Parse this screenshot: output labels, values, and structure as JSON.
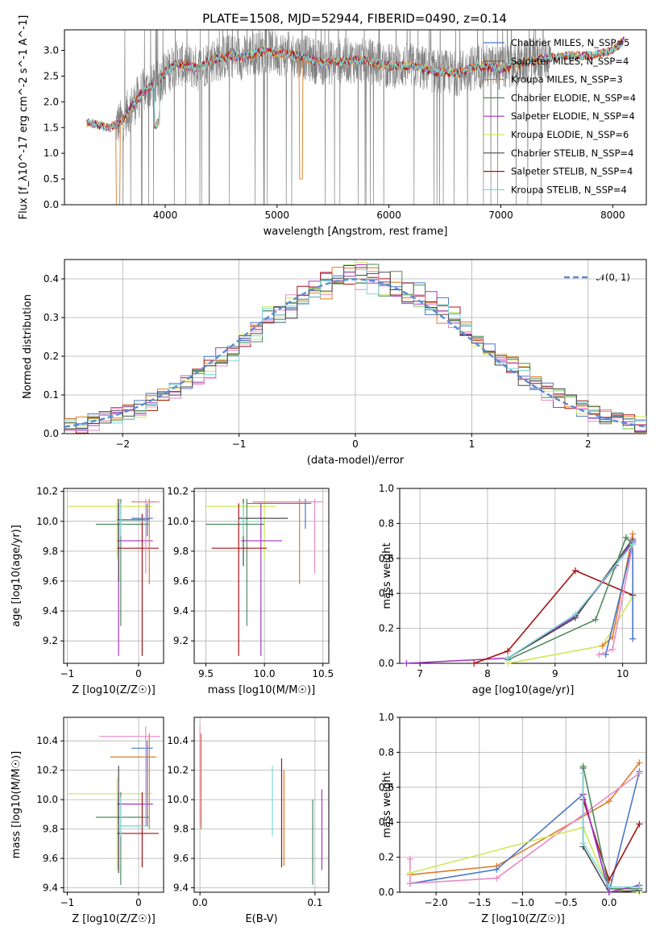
{
  "figure": {
    "title": "PLATE=1508, MJD=52944, FIBERID=0490, z=0.14"
  },
  "colors": {
    "chabrier_miles": "#4a78c8",
    "salpeter_miles": "#8b5a2b",
    "kroupa_miles": "#e07b27",
    "chabrier_elodie": "#4e8a5e",
    "salpeter_elodie": "#a335c4",
    "kroupa_elodie": "#cfe85a",
    "chabrier_stelib": "#4a4a4a",
    "salpeter_stelib": "#a41416",
    "kroupa_stelib": "#7ed8d8",
    "data_grey": "#808080",
    "gauss": "#5b8bd4",
    "pink": "#e88ac8"
  },
  "chart_data": [
    {
      "type": "line",
      "id": "spectrum",
      "xlabel": "wavelength [Angstrom, rest frame]",
      "ylabel": "Flux [f_λ10^-17 erg cm^-2 s^-1 A^-1]",
      "xlim": [
        3100,
        8300
      ],
      "ylim": [
        0,
        3.4
      ],
      "xticks": [
        4000,
        5000,
        6000,
        7000,
        8000
      ],
      "yticks": [
        0.0,
        0.5,
        1.0,
        1.5,
        2.0,
        2.5,
        3.0
      ],
      "tick_labels_x": [
        "4000",
        "5000",
        "6000",
        "7000",
        "8000"
      ],
      "tick_labels_y": [
        "0.0",
        "0.5",
        "1.0",
        "1.5",
        "2.0",
        "2.5",
        "3.0"
      ],
      "legend_position": "top-right",
      "legend": [
        "Chabrier MILES, N_SSP=5",
        "Salpeter MILES, N_SSP=4",
        "Kroupa MILES, N_SSP=3",
        "Chabrier ELODIE, N_SSP=4",
        "Salpeter ELODIE, N_SSP=4",
        "Kroupa ELODIE, N_SSP=6",
        "Chabrier STELIB, N_SSP=4",
        "Salpeter STELIB, N_SSP=4",
        "Kroupa STELIB, N_SSP=4"
      ],
      "model_continuum": {
        "x": [
          3300,
          3400,
          3500,
          3600,
          3700,
          3800,
          3900,
          4000,
          4100,
          4200,
          4300,
          4400,
          4500,
          4600,
          4700,
          4800,
          4900,
          5000,
          5200,
          5400,
          5600,
          5800,
          6000,
          6200,
          6400,
          6600,
          6800,
          7000,
          7200,
          7400,
          7600,
          7800,
          8000,
          8100
        ],
        "y": [
          1.6,
          1.55,
          1.5,
          1.6,
          1.9,
          2.2,
          2.3,
          2.55,
          2.75,
          2.7,
          2.65,
          2.8,
          2.85,
          2.9,
          2.85,
          2.95,
          3.0,
          2.95,
          2.9,
          2.75,
          2.8,
          2.8,
          2.7,
          2.7,
          2.6,
          2.55,
          2.7,
          2.65,
          2.75,
          2.85,
          2.9,
          2.9,
          3.0,
          3.2
        ]
      },
      "data_range": [
        3560,
        7450
      ]
    },
    {
      "type": "line",
      "id": "residuals",
      "xlabel": "(data-model)/error",
      "ylabel": "Normed distribution",
      "xlim": [
        -2.5,
        2.5
      ],
      "ylim": [
        0,
        0.45
      ],
      "xticks": [
        -2,
        -1,
        0,
        1,
        2
      ],
      "yticks": [
        0.0,
        0.1,
        0.2,
        0.3,
        0.4
      ],
      "tick_labels_x": [
        "−2",
        "−1",
        "0",
        "1",
        "2"
      ],
      "tick_labels_y": [
        "0.0",
        "0.1",
        "0.2",
        "0.3",
        "0.4"
      ],
      "legend": [
        "𝒩(0, 1)"
      ],
      "legend_position": "top-right",
      "gauss_mean": 0,
      "gauss_sigma": 1
    },
    {
      "type": "scatter",
      "id": "age_vs_Z",
      "xlabel": "Z [log10(Z/Z☉)]",
      "ylabel": "age  [log10(age/yr)]",
      "xlim": [
        -1.05,
        0.35
      ],
      "ylim": [
        9.05,
        10.22
      ],
      "xticks": [
        -1,
        0
      ],
      "yticks": [
        9.2,
        9.4,
        9.6,
        9.8,
        10.0,
        10.2
      ],
      "tick_labels_x": [
        "−1",
        "0"
      ],
      "tick_labels_y": [
        "9.2",
        "9.4",
        "9.6",
        "9.8",
        "10.0",
        "10.2"
      ],
      "points": [
        {
          "c": "kroupa_elodie",
          "x": -0.3,
          "xe": [
            -1.0,
            0.2
          ],
          "y": 10.1,
          "ye": [
            9.75,
            10.15
          ]
        },
        {
          "c": "chabrier_elodie",
          "x": -0.25,
          "xe": [
            -0.6,
            0.15
          ],
          "y": 9.98,
          "ye": [
            9.3,
            10.15
          ]
        },
        {
          "c": "salpeter_elodie",
          "x": -0.28,
          "xe": [
            -0.3,
            0.2
          ],
          "y": 9.87,
          "ye": [
            9.1,
            10.12
          ]
        },
        {
          "c": "salpeter_stelib",
          "x": 0.05,
          "xe": [
            -0.3,
            0.28
          ],
          "y": 9.82,
          "ye": [
            9.1,
            10.05
          ]
        },
        {
          "c": "chabrier_stelib",
          "x": -0.28,
          "xe": [
            -0.3,
            0.15
          ],
          "y": 10.01,
          "ye": [
            9.6,
            10.15
          ]
        },
        {
          "c": "kroupa_miles",
          "x": 0.15,
          "xe": [
            -0.1,
            0.25
          ],
          "y": 10.13,
          "ye": [
            9.58,
            10.15
          ]
        },
        {
          "c": "chabrier_miles",
          "x": 0.12,
          "xe": [
            -0.1,
            0.2
          ],
          "y": 10.02,
          "ye": [
            9.9,
            10.12
          ]
        },
        {
          "c": "pink",
          "x": 0.1,
          "xe": [
            -0.05,
            0.3
          ],
          "y": 10.13,
          "ye": [
            9.65,
            10.15
          ]
        },
        {
          "c": "kroupa_stelib",
          "x": -0.25,
          "xe": [
            -0.3,
            0.15
          ],
          "y": 10.0,
          "ye": [
            9.9,
            10.12
          ]
        }
      ]
    },
    {
      "type": "scatter",
      "id": "age_vs_mass",
      "xlabel": "mass [log10(M/M☉)]",
      "ylabel": "",
      "xlim": [
        9.4,
        10.55
      ],
      "ylim": [
        9.05,
        10.22
      ],
      "xticks": [
        9.5,
        10.0,
        10.5
      ],
      "yticks": [
        9.2,
        9.4,
        9.6,
        9.8,
        10.0,
        10.2
      ],
      "tick_labels_x": [
        "9.5",
        "10.0",
        "10.5"
      ],
      "tick_labels_y": [
        "9.2",
        "9.4",
        "9.6",
        "9.8",
        "10.0",
        "10.2"
      ],
      "points": [
        {
          "c": "kroupa_elodie",
          "x": 10.0,
          "xe": [
            9.5,
            10.1
          ],
          "y": 10.1,
          "ye": [
            9.75,
            10.15
          ]
        },
        {
          "c": "chabrier_elodie",
          "x": 9.85,
          "xe": [
            9.5,
            10.0
          ],
          "y": 9.98,
          "ye": [
            9.3,
            10.15
          ]
        },
        {
          "c": "salpeter_elodie",
          "x": 9.97,
          "xe": [
            9.8,
            10.15
          ],
          "y": 9.87,
          "ye": [
            9.1,
            10.12
          ]
        },
        {
          "c": "salpeter_stelib",
          "x": 9.78,
          "xe": [
            9.55,
            10.02
          ],
          "y": 9.82,
          "ye": [
            9.1,
            10.12
          ]
        },
        {
          "c": "chabrier_stelib",
          "x": 9.82,
          "xe": [
            9.78,
            10.2
          ],
          "y": 10.02,
          "ye": [
            9.7,
            10.15
          ]
        },
        {
          "c": "kroupa_miles",
          "x": 10.3,
          "xe": [
            9.9,
            10.4
          ],
          "y": 10.13,
          "ye": [
            9.58,
            10.15
          ]
        },
        {
          "c": "chabrier_miles",
          "x": 10.35,
          "xe": [
            9.85,
            10.4
          ],
          "y": 10.12,
          "ye": [
            9.95,
            10.15
          ]
        },
        {
          "c": "pink",
          "x": 10.43,
          "xe": [
            9.9,
            10.5
          ],
          "y": 10.13,
          "ye": [
            9.65,
            10.15
          ]
        },
        {
          "c": "kroupa_stelib",
          "x": 9.82,
          "xe": [
            9.75,
            10.0
          ],
          "y": 10.0,
          "ye": [
            9.9,
            10.12
          ]
        }
      ]
    },
    {
      "type": "line",
      "id": "weight_vs_age",
      "xlabel": "age  [log10(age/yr)]",
      "ylabel": "mass weight",
      "xlim": [
        6.7,
        10.35
      ],
      "ylim": [
        0,
        1.0
      ],
      "xticks": [
        7,
        8,
        9,
        10
      ],
      "yticks": [
        0.0,
        0.2,
        0.4,
        0.6,
        0.8,
        1.0
      ],
      "tick_labels_x": [
        "7",
        "8",
        "9",
        "10"
      ],
      "tick_labels_y": [
        "0.0",
        "0.2",
        "0.4",
        "0.6",
        "0.8",
        "1.0"
      ],
      "series": [
        {
          "c": "salpeter_elodie",
          "x": [
            6.8,
            8.3,
            9.3,
            9.9,
            10.15
          ],
          "y": [
            0.0,
            0.03,
            0.27,
            0.56,
            0.7
          ]
        },
        {
          "c": "salpeter_stelib",
          "x": [
            7.8,
            8.3,
            9.3,
            10.15
          ],
          "y": [
            0.0,
            0.07,
            0.53,
            0.39
          ]
        },
        {
          "c": "chabrier_stelib",
          "x": [
            8.3,
            9.3,
            10.15
          ],
          "y": [
            0.03,
            0.26,
            0.71
          ]
        },
        {
          "c": "chabrier_elodie",
          "x": [
            8.3,
            9.6,
            10.05,
            10.15
          ],
          "y": [
            0.02,
            0.25,
            0.72,
            0.68
          ]
        },
        {
          "c": "kroupa_elodie",
          "x": [
            8.3,
            9.7,
            10.15
          ],
          "y": [
            0.0,
            0.1,
            0.38
          ]
        },
        {
          "c": "kroupa_miles",
          "x": [
            9.7,
            9.85,
            10.15
          ],
          "y": [
            0.1,
            0.15,
            0.74
          ]
        },
        {
          "c": "chabrier_miles",
          "x": [
            9.75,
            10.15,
            10.15
          ],
          "y": [
            0.05,
            0.69,
            0.14
          ]
        },
        {
          "c": "pink",
          "x": [
            9.65,
            9.85,
            10.15
          ],
          "y": [
            0.05,
            0.08,
            0.68
          ]
        },
        {
          "c": "kroupa_stelib",
          "x": [
            8.3,
            9.3,
            10.15
          ],
          "y": [
            0.03,
            0.28,
            0.68
          ]
        }
      ]
    },
    {
      "type": "scatter",
      "id": "mass_vs_Z",
      "xlabel": "Z [log10(Z/Z☉)]",
      "ylabel": "mass [log10(M/M☉)]",
      "xlim": [
        -1.05,
        0.35
      ],
      "ylim": [
        9.37,
        10.56
      ],
      "xticks": [
        -1,
        0
      ],
      "yticks": [
        9.4,
        9.6,
        9.8,
        10.0,
        10.2,
        10.4
      ],
      "tick_labels_x": [
        "−1",
        "0"
      ],
      "tick_labels_y": [
        "9.4",
        "9.6",
        "9.8",
        "10.0",
        "10.2",
        "10.4"
      ],
      "points": [
        {
          "c": "kroupa_elodie",
          "x": -0.3,
          "xe": [
            -1.0,
            0.2
          ],
          "y": 10.04,
          "ye": [
            9.52,
            10.15
          ]
        },
        {
          "c": "chabrier_elodie",
          "x": -0.25,
          "xe": [
            -0.6,
            0.15
          ],
          "y": 9.88,
          "ye": [
            9.42,
            10.05
          ]
        },
        {
          "c": "salpeter_elodie",
          "x": -0.28,
          "xe": [
            -0.3,
            0.2
          ],
          "y": 9.97,
          "ye": [
            9.52,
            10.05
          ]
        },
        {
          "c": "salpeter_stelib",
          "x": 0.05,
          "xe": [
            -0.3,
            0.28
          ],
          "y": 9.77,
          "ye": [
            9.54,
            10.05
          ]
        },
        {
          "c": "chabrier_stelib",
          "x": -0.28,
          "xe": [
            -0.3,
            0.15
          ],
          "y": 9.82,
          "ye": [
            9.5,
            10.23
          ]
        },
        {
          "c": "kroupa_miles",
          "x": 0.15,
          "xe": [
            -0.4,
            0.25
          ],
          "y": 10.29,
          "ye": [
            9.8,
            10.45
          ]
        },
        {
          "c": "chabrier_miles",
          "x": 0.12,
          "xe": [
            -0.1,
            0.2
          ],
          "y": 10.35,
          "ye": [
            9.82,
            10.4
          ]
        },
        {
          "c": "pink",
          "x": 0.1,
          "xe": [
            -0.55,
            0.3
          ],
          "y": 10.43,
          "ye": [
            9.82,
            10.5
          ]
        },
        {
          "c": "kroupa_stelib",
          "x": -0.25,
          "xe": [
            -0.3,
            0.15
          ],
          "y": 9.82,
          "ye": [
            9.75,
            10.02
          ]
        }
      ]
    },
    {
      "type": "scatter",
      "id": "mass_vs_ebv",
      "xlabel": "E(B-V)",
      "ylabel": "",
      "xlim": [
        -0.005,
        0.112
      ],
      "ylim": [
        9.37,
        10.56
      ],
      "xticks": [
        0.0,
        0.1
      ],
      "yticks": [
        9.4,
        9.6,
        9.8,
        10.0,
        10.2,
        10.4
      ],
      "tick_labels_x": [
        "0.0",
        "0.1"
      ],
      "tick_labels_y": [
        "9.4",
        "9.6",
        "9.8",
        "10.0",
        "10.2",
        "10.4"
      ],
      "points": [
        {
          "c": "pink",
          "x": 0.0,
          "xe": [
            0.0,
            0.0
          ],
          "y": 10.43,
          "ye": [
            9.82,
            10.5
          ]
        },
        {
          "c": "kroupa_miles",
          "x": 0.001,
          "xe": [
            0.001,
            0.001
          ],
          "y": 10.29,
          "ye": [
            9.8,
            10.45
          ]
        },
        {
          "c": "kroupa_stelib",
          "x": 0.063,
          "xe": [
            0.063,
            0.063
          ],
          "y": 9.82,
          "ye": [
            9.75,
            10.23
          ]
        },
        {
          "c": "salpeter_stelib",
          "x": 0.071,
          "xe": [
            0.071,
            0.071
          ],
          "y": 9.77,
          "ye": [
            9.54,
            10.28
          ]
        },
        {
          "c": "kroupa_miles",
          "x": 0.073,
          "xe": [
            0.073,
            0.073
          ],
          "y": 10.29,
          "ye": [
            9.55,
            10.2
          ]
        },
        {
          "c": "chabrier_elodie",
          "x": 0.098,
          "xe": [
            0.098,
            0.098
          ],
          "y": 9.88,
          "ye": [
            9.42,
            10.0
          ]
        },
        {
          "c": "salpeter_elodie",
          "x": 0.106,
          "xe": [
            0.106,
            0.106
          ],
          "y": 9.97,
          "ye": [
            9.52,
            10.07
          ]
        }
      ]
    },
    {
      "type": "line",
      "id": "weight_vs_Z",
      "xlabel": "Z [log10(Z/Z☉)]",
      "ylabel": "mass weight",
      "xlim": [
        -2.42,
        0.43
      ],
      "ylim": [
        0,
        1.0
      ],
      "xticks": [
        -2.0,
        -1.5,
        -1.0,
        -0.5,
        0.0
      ],
      "yticks": [
        0.0,
        0.2,
        0.4,
        0.6,
        0.8,
        1.0
      ],
      "tick_labels_x": [
        "−2.0",
        "−1.5",
        "−1.0",
        "−0.5",
        "0.0"
      ],
      "tick_labels_y": [
        "0.0",
        "0.2",
        "0.4",
        "0.6",
        "0.8",
        "1.0"
      ],
      "series": [
        {
          "c": "kroupa_miles",
          "x": [
            -2.3,
            -1.3,
            0.0,
            0.35
          ],
          "y": [
            0.1,
            0.15,
            0.52,
            0.74
          ]
        },
        {
          "c": "chabrier_miles",
          "x": [
            -2.3,
            -1.3,
            -0.3,
            0.0,
            0.35
          ],
          "y": [
            0.05,
            0.13,
            0.56,
            0.0,
            0.69
          ]
        },
        {
          "c": "pink",
          "x": [
            -2.3,
            -2.3,
            -1.3,
            0.35
          ],
          "y": [
            0.19,
            0.05,
            0.08,
            0.68
          ]
        },
        {
          "c": "kroupa_elodie",
          "x": [
            -2.3,
            -0.3,
            0.0,
            0.35
          ],
          "y": [
            0.11,
            0.37,
            0.02,
            0.0
          ]
        },
        {
          "c": "salpeter_stelib",
          "x": [
            -0.3,
            0.0,
            0.35
          ],
          "y": [
            0.53,
            0.07,
            0.39
          ]
        },
        {
          "c": "chabrier_stelib",
          "x": [
            -0.3,
            -0.3,
            0.0,
            0.35
          ],
          "y": [
            0.71,
            0.26,
            0.0,
            0.01
          ]
        },
        {
          "c": "chabrier_elodie",
          "x": [
            -0.3,
            0.0,
            0.35
          ],
          "y": [
            0.72,
            0.02,
            0.02
          ]
        },
        {
          "c": "salpeter_elodie",
          "x": [
            -0.3,
            0.0,
            0.35
          ],
          "y": [
            0.56,
            0.0,
            0.04
          ]
        },
        {
          "c": "kroupa_stelib",
          "x": [
            -0.3,
            -0.3,
            0.0,
            0.35
          ],
          "y": [
            0.68,
            0.28,
            0.03,
            0.03
          ]
        }
      ]
    }
  ]
}
